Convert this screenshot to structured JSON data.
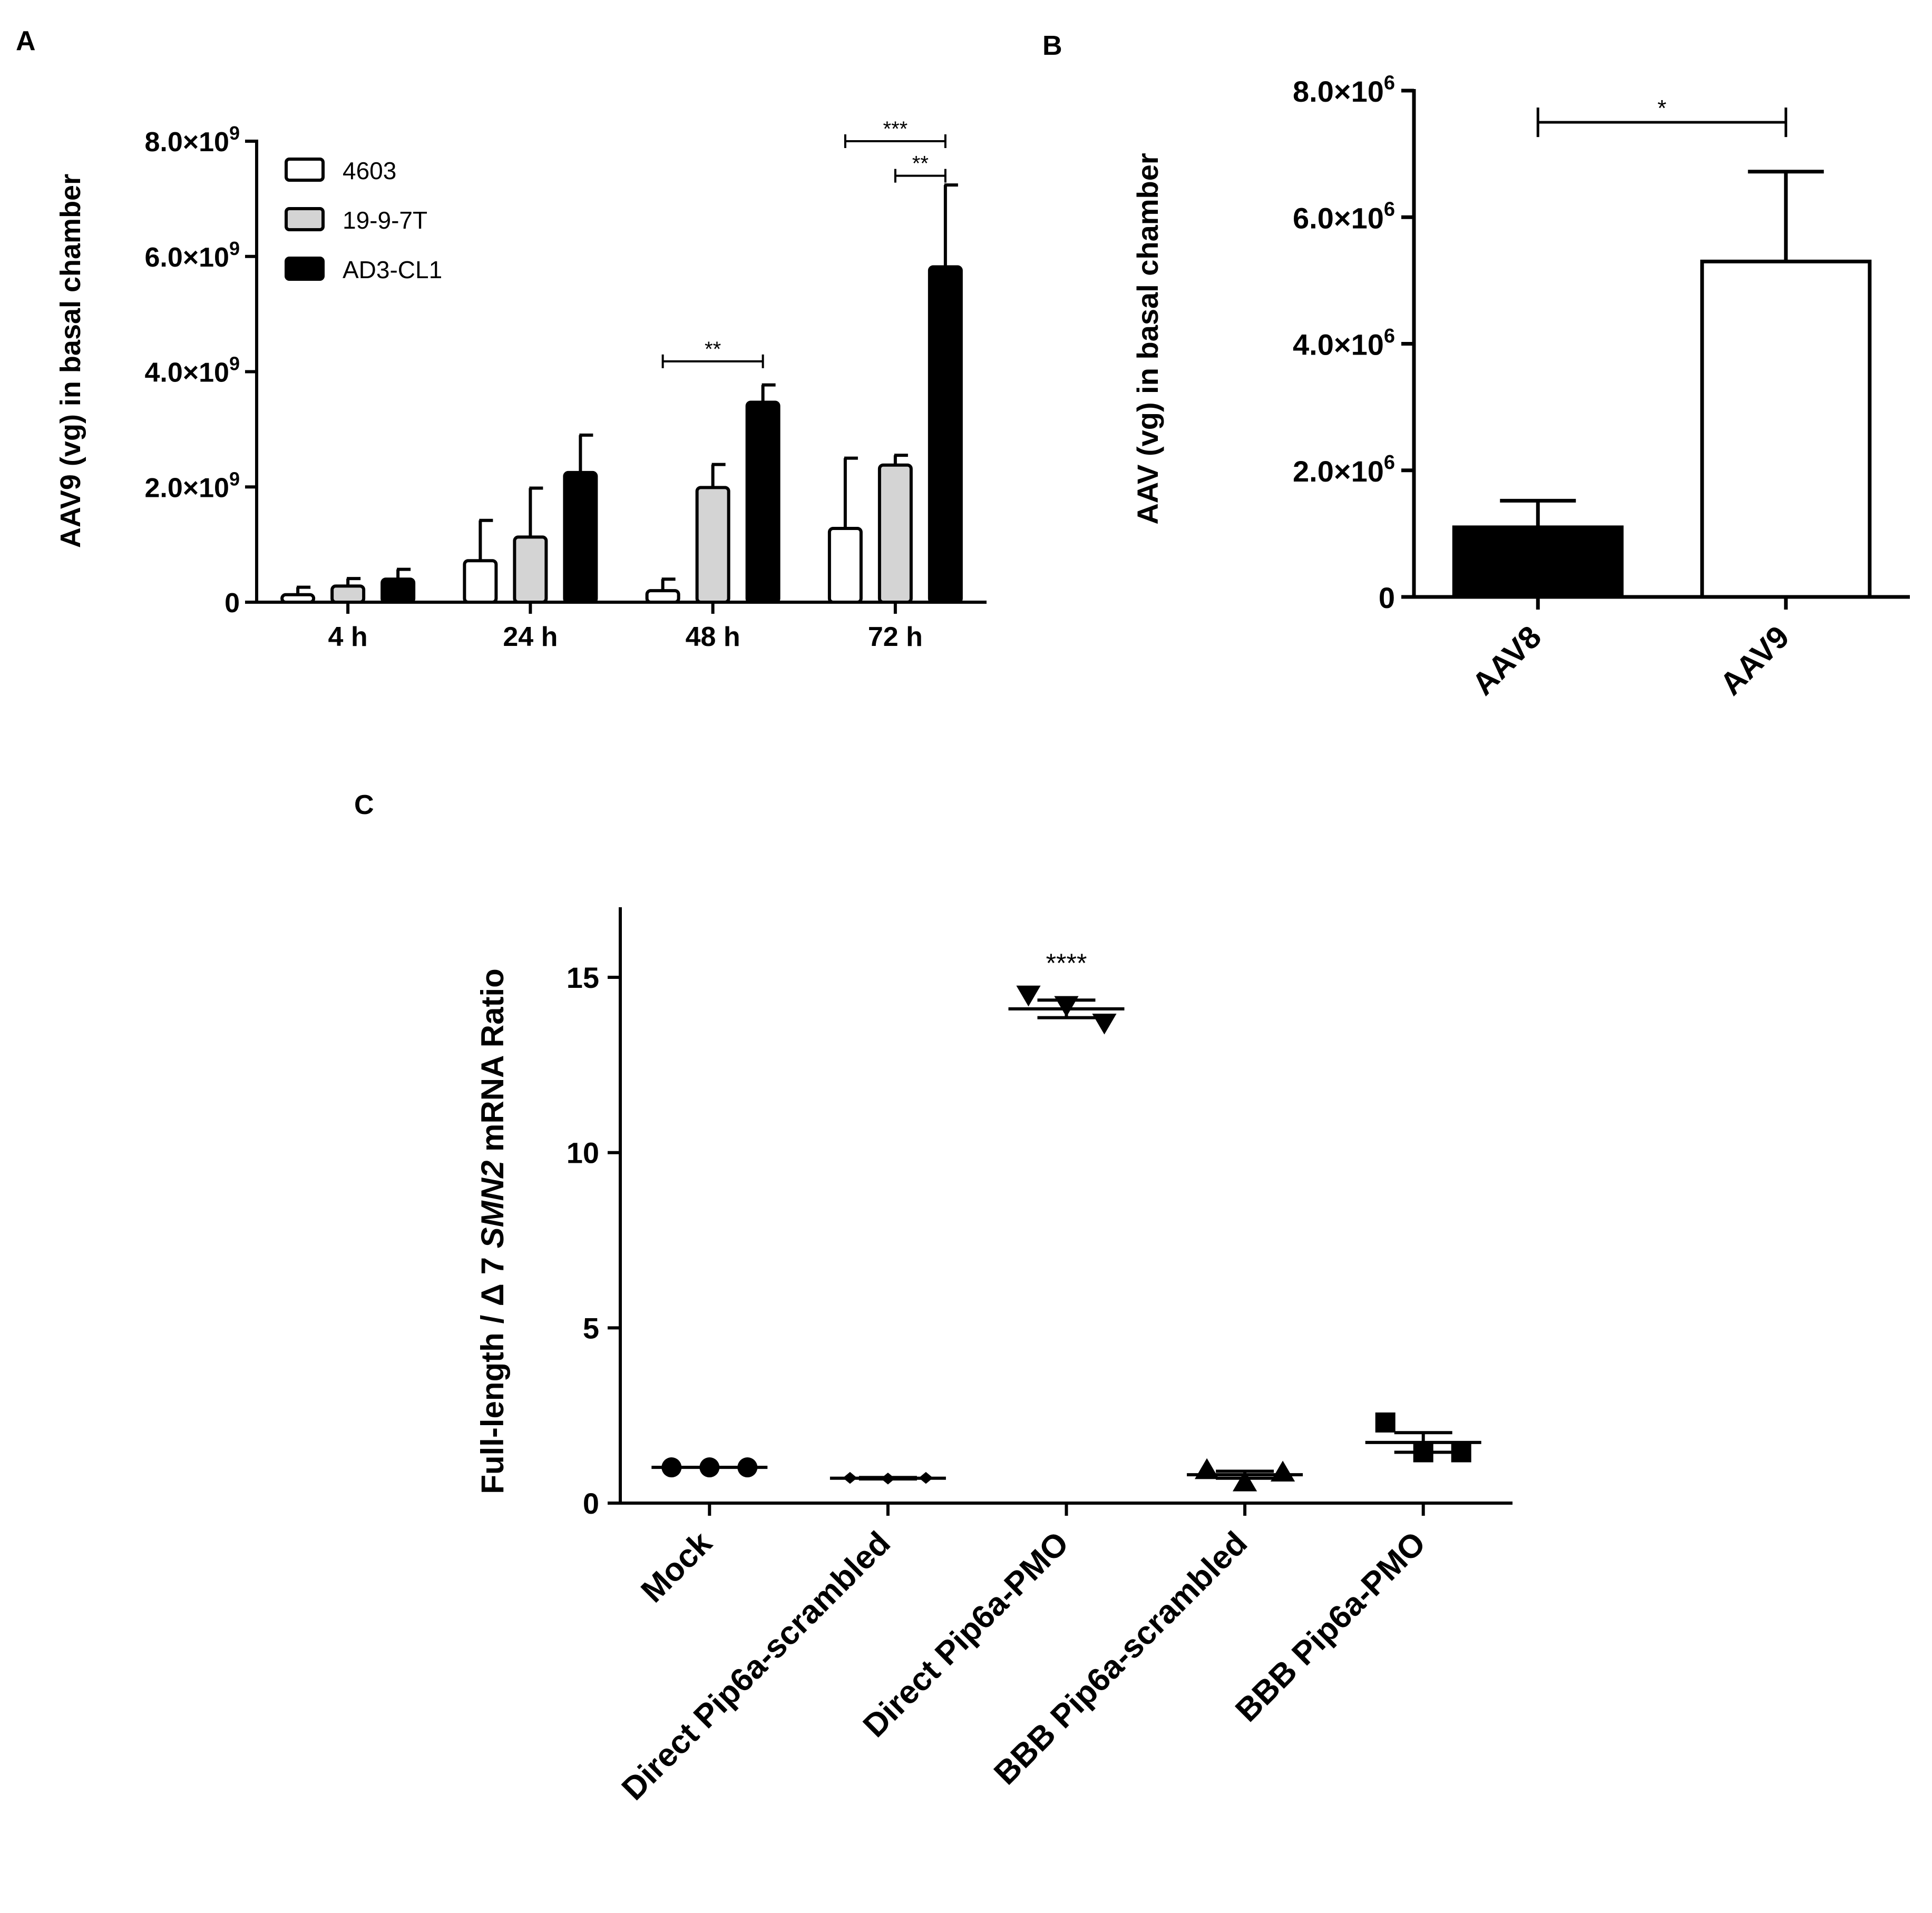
{
  "figure": {
    "panels": [
      {
        "id": "A",
        "label": "A"
      },
      {
        "id": "B",
        "label": "B"
      },
      {
        "id": "C",
        "label": "C"
      }
    ]
  },
  "chart_data": [
    {
      "panel": "A",
      "type": "bar",
      "title": "",
      "xlabel": "",
      "ylabel": "AAV9 (vg) in basal chamber",
      "categories": [
        "4 h",
        "24 h",
        "48 h",
        "72 h"
      ],
      "ylim": [
        0,
        8000000000
      ],
      "yticks": [
        {
          "value": 0,
          "label": "0"
        },
        {
          "value": 2000000000,
          "mantissa": "2.0",
          "exp": "9"
        },
        {
          "value": 4000000000,
          "mantissa": "4.0",
          "exp": "9"
        },
        {
          "value": 6000000000,
          "mantissa": "6.0",
          "exp": "9"
        },
        {
          "value": 8000000000,
          "mantissa": "8.0",
          "exp": "9"
        }
      ],
      "tick_times": "×10",
      "series": [
        {
          "name": "4603",
          "color": "#ffffff",
          "values": [
            130000000,
            720000000,
            200000000,
            1280000000
          ],
          "errors": [
            130000000,
            700000000,
            200000000,
            1220000000
          ]
        },
        {
          "name": "19-9-7T",
          "color": "#d4d4d4",
          "values": [
            280000000,
            1130000000,
            1990000000,
            2380000000
          ],
          "errors": [
            130000000,
            850000000,
            400000000,
            170000000
          ]
        },
        {
          "name": "AD3-CL1",
          "color": "#000000",
          "values": [
            400000000,
            2250000000,
            3470000000,
            5820000000
          ],
          "errors": [
            170000000,
            650000000,
            300000000,
            1420000000
          ]
        }
      ],
      "legend": {
        "position": "top-left"
      },
      "annotations": [
        {
          "text": "**",
          "category": 2,
          "from_series": 0,
          "to_series": 2,
          "level": 4180000000
        },
        {
          "text": "***",
          "category": 3,
          "from_series": 0,
          "to_series": 2,
          "level": 8000000000
        },
        {
          "text": "**",
          "category": 3,
          "from_series": 1,
          "to_series": 2,
          "level": 7400000000
        }
      ]
    },
    {
      "panel": "B",
      "type": "bar",
      "title": "",
      "xlabel": "",
      "ylabel": "AAV (vg) in basal chamber",
      "categories": [
        "AAV8",
        "AAV9"
      ],
      "ylim": [
        0,
        8000000
      ],
      "yticks": [
        {
          "value": 0,
          "label": "0"
        },
        {
          "value": 2000000,
          "mantissa": "2.0",
          "exp": "6"
        },
        {
          "value": 4000000,
          "mantissa": "4.0",
          "exp": "6"
        },
        {
          "value": 6000000,
          "mantissa": "6.0",
          "exp": "6"
        },
        {
          "value": 8000000,
          "mantissa": "8.0",
          "exp": "6"
        }
      ],
      "tick_times": "×10",
      "series": [
        {
          "name": "AAV (vg)",
          "values": [
            1100000,
            5300000
          ],
          "errors": [
            420000,
            1420000
          ],
          "colors": [
            "#000000",
            "#ffffff"
          ]
        }
      ],
      "annotations": [
        {
          "text": "*",
          "from_category": 0,
          "to_category": 1,
          "level": 7500000
        }
      ]
    },
    {
      "panel": "C",
      "type": "scatter",
      "title": "",
      "xlabel": "",
      "ylabel_parts": [
        {
          "text": "Full-length / ",
          "italic": false
        },
        {
          "text": "Δ",
          "italic": false
        },
        {
          "text": " 7 ",
          "italic": false
        },
        {
          "text": "SMN2",
          "italic": true
        },
        {
          "text": " mRNA Ratio",
          "italic": false
        }
      ],
      "categories": [
        "Mock",
        "Direct Pip6a-scrambled",
        "Direct Pip6a-PMO",
        "BBB Pip6a-scrambled",
        "BBB Pip6a-PMO"
      ],
      "ylim": [
        0,
        17
      ],
      "yticks": [
        0,
        5,
        10,
        15
      ],
      "groups": [
        {
          "marker": "circle",
          "points": [
            1.02,
            1.02,
            1.02
          ],
          "mean": 1.02,
          "sem": 0
        },
        {
          "marker": "diamond",
          "points": [
            0.72,
            0.7,
            0.72
          ],
          "mean": 0.71,
          "sem": 0.02
        },
        {
          "marker": "triangle-down",
          "points": [
            14.5,
            14.2,
            13.7
          ],
          "mean": 14.1,
          "sem": 0.25
        },
        {
          "marker": "triangle-up",
          "points": [
            0.95,
            0.6,
            0.88
          ],
          "mean": 0.81,
          "sem": 0.1
        },
        {
          "marker": "square",
          "points": [
            2.3,
            1.45,
            1.45
          ],
          "mean": 1.73,
          "sem": 0.28
        }
      ],
      "annotations": [
        {
          "text": "****",
          "category": 2,
          "level": 15.0
        }
      ]
    }
  ]
}
